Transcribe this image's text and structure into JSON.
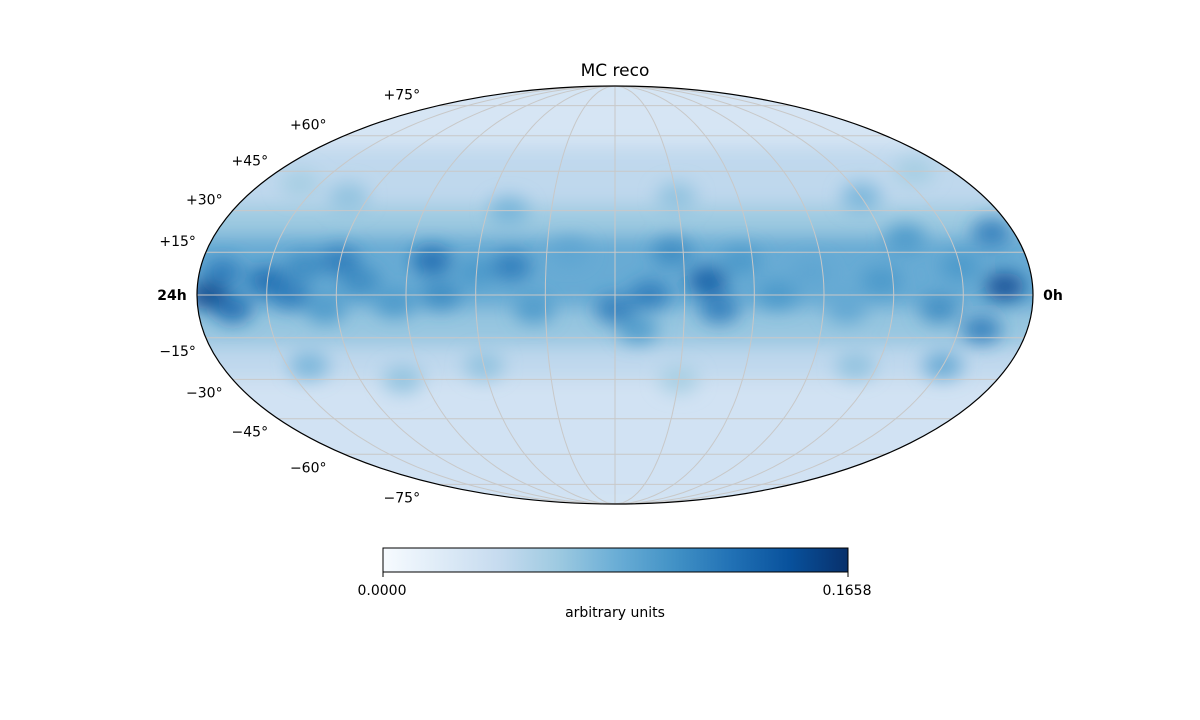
{
  "chart_data": {
    "type": "heatmap",
    "projection": "mollweide",
    "title": "MC reco",
    "colormap": "Blues",
    "colorbar": {
      "label": "arbitrary units",
      "min_label": "0.0000",
      "max_label": "0.1658",
      "min": 0.0,
      "max": 0.1658,
      "stops": [
        "#f7fbff",
        "#deebf7",
        "#c6dbef",
        "#9ecae1",
        "#6baed6",
        "#4292c6",
        "#2171b5",
        "#08519c",
        "#08306b"
      ]
    },
    "ra_labels": {
      "left": "24h",
      "right": "0h"
    },
    "dec_gridlines": [
      75,
      60,
      45,
      30,
      15,
      0,
      -15,
      -30,
      -45,
      -60,
      -75
    ],
    "dec_labels": [
      {
        "dec": 75,
        "text": "+75°"
      },
      {
        "dec": 60,
        "text": "+60°"
      },
      {
        "dec": 45,
        "text": "+45°"
      },
      {
        "dec": 30,
        "text": "+30°"
      },
      {
        "dec": 15,
        "text": "+15°"
      },
      {
        "dec": -15,
        "text": "−15°"
      },
      {
        "dec": -30,
        "text": "−30°"
      },
      {
        "dec": -45,
        "text": "−45°"
      },
      {
        "dec": -60,
        "text": "−60°"
      },
      {
        "dec": -75,
        "text": "−75°"
      }
    ],
    "ra_gridlines_deg": [
      -150,
      -120,
      -90,
      -60,
      -30,
      0,
      30,
      60,
      90,
      120,
      150
    ],
    "grid": true,
    "grid_color": "#c8c8c8",
    "hotspots": [
      {
        "lon": 175,
        "lat": 0,
        "value": 0.155
      },
      {
        "lon": 165,
        "lat": -5,
        "value": 0.13
      },
      {
        "lon": 170,
        "lat": 8,
        "value": 0.12
      },
      {
        "lon": 150,
        "lat": 5,
        "value": 0.13
      },
      {
        "lon": 140,
        "lat": 0,
        "value": 0.12
      },
      {
        "lon": 135,
        "lat": 10,
        "value": 0.11
      },
      {
        "lon": 120,
        "lat": 12,
        "value": 0.12
      },
      {
        "lon": 125,
        "lat": -5,
        "value": 0.1
      },
      {
        "lon": 110,
        "lat": 5,
        "value": 0.11
      },
      {
        "lon": 95,
        "lat": -3,
        "value": 0.1
      },
      {
        "lon": 80,
        "lat": 12,
        "value": 0.13
      },
      {
        "lon": 75,
        "lat": 0,
        "value": 0.11
      },
      {
        "lon": 60,
        "lat": 8,
        "value": 0.1
      },
      {
        "lon": 45,
        "lat": 10,
        "value": 0.12
      },
      {
        "lon": 35,
        "lat": -5,
        "value": 0.1
      },
      {
        "lon": 20,
        "lat": 15,
        "value": 0.09
      },
      {
        "lon": 0,
        "lat": -5,
        "value": 0.12
      },
      {
        "lon": -15,
        "lat": 0,
        "value": 0.12
      },
      {
        "lon": -10,
        "lat": -12,
        "value": 0.1
      },
      {
        "lon": -25,
        "lat": 15,
        "value": 0.11
      },
      {
        "lon": -40,
        "lat": 5,
        "value": 0.14
      },
      {
        "lon": -45,
        "lat": -5,
        "value": 0.12
      },
      {
        "lon": -55,
        "lat": 12,
        "value": 0.1
      },
      {
        "lon": -70,
        "lat": 0,
        "value": 0.1
      },
      {
        "lon": -85,
        "lat": 8,
        "value": 0.09
      },
      {
        "lon": -100,
        "lat": -5,
        "value": 0.09
      },
      {
        "lon": -115,
        "lat": 5,
        "value": 0.1
      },
      {
        "lon": -130,
        "lat": 20,
        "value": 0.1
      },
      {
        "lon": -140,
        "lat": -5,
        "value": 0.11
      },
      {
        "lon": -150,
        "lat": 10,
        "value": 0.1
      },
      {
        "lon": -160,
        "lat": -12,
        "value": 0.12
      },
      {
        "lon": -168,
        "lat": 3,
        "value": 0.15
      },
      {
        "lon": -170,
        "lat": 22,
        "value": 0.12
      },
      {
        "lon": -150,
        "lat": -25,
        "value": 0.09
      },
      {
        "lon": -110,
        "lat": -25,
        "value": 0.07
      },
      {
        "lon": -30,
        "lat": -30,
        "value": 0.06
      },
      {
        "lon": 60,
        "lat": -25,
        "value": 0.07
      },
      {
        "lon": 100,
        "lat": -30,
        "value": 0.07
      },
      {
        "lon": 140,
        "lat": -25,
        "value": 0.08
      },
      {
        "lon": -120,
        "lat": 35,
        "value": 0.08
      },
      {
        "lon": -30,
        "lat": 35,
        "value": 0.07
      },
      {
        "lon": 50,
        "lat": 30,
        "value": 0.08
      },
      {
        "lon": 130,
        "lat": 35,
        "value": 0.07
      },
      {
        "lon": 160,
        "lat": 40,
        "value": 0.06
      },
      {
        "lon": -160,
        "lat": 45,
        "value": 0.06
      }
    ]
  }
}
